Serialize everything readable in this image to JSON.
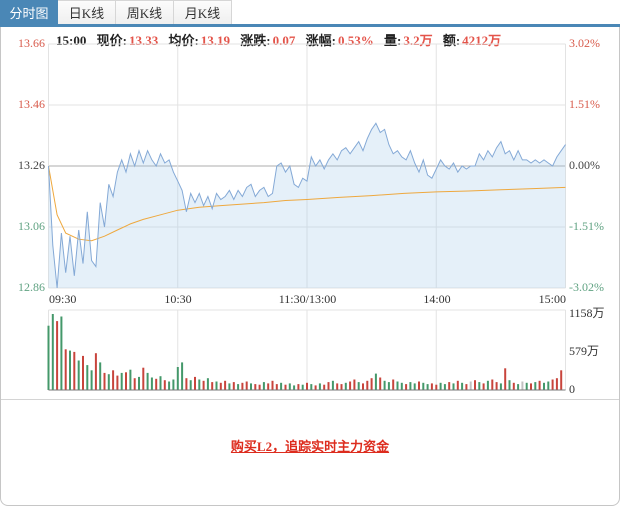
{
  "tabs": [
    {
      "label": "分时图",
      "active": true
    },
    {
      "label": "日K线",
      "active": false
    },
    {
      "label": "周K线",
      "active": false
    },
    {
      "label": "月K线",
      "active": false
    }
  ],
  "info": {
    "time": "15:00",
    "fields": [
      {
        "label": "现价:",
        "value": "13.33"
      },
      {
        "label": "均价:",
        "value": "13.19"
      },
      {
        "label": "涨跌:",
        "value": "0.07"
      },
      {
        "label": "涨幅:",
        "value": "0.53%"
      },
      {
        "label": "量:",
        "value": "3.2万"
      },
      {
        "label": "额:",
        "value": "4212万"
      }
    ]
  },
  "promo": {
    "link_text": "购买L2，追踪实时主力资金"
  },
  "colors": {
    "accent_blue": "#4a87b6",
    "value_red": "#e4544a",
    "axis_up_red": "#d85b4c",
    "axis_down_green": "#61a383",
    "price_line": "#84a9d6",
    "price_fill": "rgba(160,200,235,0.28)",
    "avg_line": "#eea83e",
    "vol_up": "#c8443c",
    "vol_down": "#44986a",
    "vol_flat": "#c0c0c0",
    "grid": "#e3e3e3",
    "zero_line": "#acacac",
    "promo_red": "#dd2c1e"
  },
  "chart_data": {
    "type": "line",
    "title": "分时图 intraday price/volume",
    "x_axis": {
      "labels": [
        "09:30",
        "10:30",
        "11:30/13:00",
        "14:00",
        "15:00"
      ],
      "minutes": 240
    },
    "left_axis": [
      "13.66",
      "13.46",
      "13.26",
      "13.06",
      "12.86"
    ],
    "right_axis": [
      "3.02%",
      "1.51%",
      "0.00%",
      "-1.51%",
      "-3.02%"
    ],
    "baseline_price": 13.26,
    "price_range": [
      12.86,
      13.66
    ],
    "day_high": 13.4,
    "day_low": 12.86,
    "close": 13.33,
    "series": [
      {
        "name": "price",
        "step_min": 2,
        "values": [
          13.26,
          13.0,
          12.86,
          13.04,
          12.91,
          13.03,
          12.9,
          13.05,
          12.94,
          13.11,
          12.95,
          12.93,
          13.14,
          13.06,
          13.2,
          13.16,
          13.24,
          13.28,
          13.24,
          13.3,
          13.26,
          13.31,
          13.27,
          13.31,
          13.28,
          13.26,
          13.3,
          13.27,
          13.28,
          13.24,
          13.21,
          13.18,
          13.11,
          13.17,
          13.14,
          13.17,
          13.13,
          13.16,
          13.12,
          13.17,
          13.15,
          13.16,
          13.18,
          13.15,
          13.18,
          13.16,
          13.19,
          13.2,
          13.16,
          13.18,
          13.19,
          13.16,
          13.17,
          13.26,
          13.27,
          13.24,
          13.26,
          13.2,
          13.19,
          13.22,
          13.21,
          13.29,
          13.26,
          13.28,
          13.25,
          13.28,
          13.3,
          13.28,
          13.31,
          13.32,
          13.3,
          13.32,
          13.34,
          13.31,
          13.35,
          13.38,
          13.4,
          13.37,
          13.38,
          13.33,
          13.3,
          13.31,
          13.29,
          13.28,
          13.31,
          13.27,
          13.24,
          13.28,
          13.23,
          13.22,
          13.25,
          13.28,
          13.26,
          13.25,
          13.27,
          13.24,
          13.26,
          13.25,
          13.26,
          13.26,
          13.3,
          13.28,
          13.31,
          13.29,
          13.32,
          13.34,
          13.3,
          13.31,
          13.28,
          13.31,
          13.28,
          13.28,
          13.27,
          13.28,
          13.27,
          13.28,
          13.27,
          13.26,
          13.29,
          13.31,
          13.33
        ]
      },
      {
        "name": "average_price",
        "points": [
          [
            0,
            13.26
          ],
          [
            4,
            13.1
          ],
          [
            8,
            13.04
          ],
          [
            14,
            13.02
          ],
          [
            20,
            13.015
          ],
          [
            26,
            13.03
          ],
          [
            32,
            13.05
          ],
          [
            38,
            13.07
          ],
          [
            44,
            13.085
          ],
          [
            52,
            13.1
          ],
          [
            60,
            13.115
          ],
          [
            70,
            13.125
          ],
          [
            80,
            13.13
          ],
          [
            90,
            13.135
          ],
          [
            100,
            13.14
          ],
          [
            110,
            13.147
          ],
          [
            120,
            13.15
          ],
          [
            135,
            13.157
          ],
          [
            150,
            13.163
          ],
          [
            165,
            13.17
          ],
          [
            180,
            13.175
          ],
          [
            195,
            13.178
          ],
          [
            210,
            13.182
          ],
          [
            225,
            13.186
          ],
          [
            240,
            13.19
          ]
        ]
      }
    ],
    "volume": {
      "axis_labels": [
        "1158万",
        "579万",
        "0"
      ],
      "max": 1158,
      "step_min": 2,
      "values": [
        980,
        1158,
        1050,
        1120,
        620,
        600,
        580,
        450,
        520,
        380,
        300,
        560,
        420,
        260,
        240,
        300,
        220,
        260,
        270,
        310,
        180,
        200,
        340,
        260,
        190,
        170,
        210,
        150,
        130,
        160,
        350,
        420,
        180,
        150,
        200,
        160,
        140,
        180,
        120,
        130,
        110,
        140,
        100,
        120,
        90,
        110,
        130,
        100,
        90,
        80,
        120,
        100,
        140,
        90,
        110,
        80,
        100,
        70,
        90,
        80,
        110,
        90,
        70,
        100,
        80,
        120,
        140,
        100,
        90,
        110,
        130,
        160,
        120,
        100,
        140,
        180,
        250,
        190,
        140,
        120,
        160,
        130,
        110,
        90,
        120,
        100,
        130,
        110,
        90,
        100,
        80,
        110,
        90,
        120,
        100,
        140,
        110,
        90,
        130,
        150,
        120,
        100,
        140,
        160,
        120,
        100,
        330,
        150,
        110,
        90,
        130,
        110,
        100,
        120,
        140,
        110,
        130,
        160,
        180,
        300
      ]
    }
  }
}
